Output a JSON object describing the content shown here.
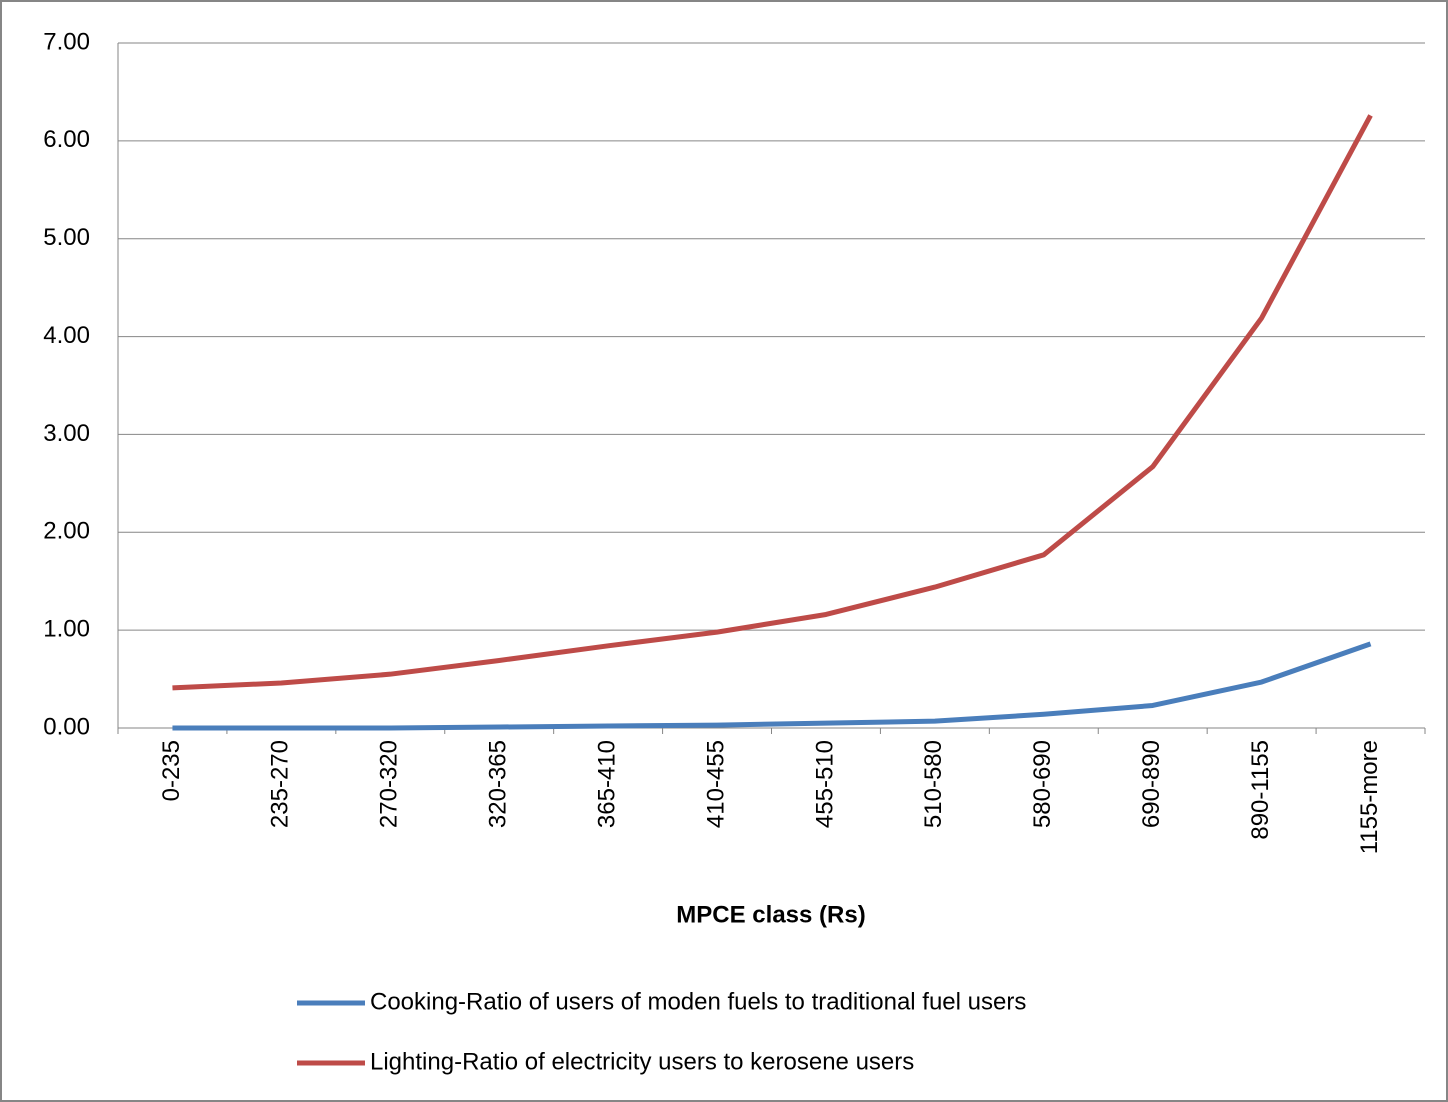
{
  "chart_data": {
    "type": "line",
    "xlabel": "MPCE class (Rs)",
    "categories": [
      "0-235",
      "235-270",
      "270-320",
      "320-365",
      "365-410",
      "410-455",
      "455-510",
      "510-580",
      "580-690",
      "690-890",
      "890-1155",
      "1155-more"
    ],
    "series": [
      {
        "name": "Cooking-Ratio of users of moden fuels to traditional fuel users",
        "color": "#4a7ebb",
        "values": [
          0.0,
          0.0,
          0.0,
          0.01,
          0.02,
          0.03,
          0.05,
          0.07,
          0.14,
          0.23,
          0.47,
          0.86
        ]
      },
      {
        "name": "Lighting-Ratio of electricity users to kerosene users",
        "color": "#be4b48",
        "values": [
          0.41,
          0.46,
          0.55,
          0.69,
          0.84,
          0.98,
          1.16,
          1.44,
          1.77,
          2.67,
          4.19,
          6.26
        ]
      }
    ],
    "ylim": [
      0,
      7
    ],
    "yticks": [
      {
        "value": 0,
        "label": "0.00"
      },
      {
        "value": 1,
        "label": "1.00"
      },
      {
        "value": 2,
        "label": "2.00"
      },
      {
        "value": 3,
        "label": "3.00"
      },
      {
        "value": 4,
        "label": "4.00"
      },
      {
        "value": 5,
        "label": "5.00"
      },
      {
        "value": 6,
        "label": "6.00"
      },
      {
        "value": 7,
        "label": "7.00"
      }
    ],
    "grid": true,
    "legend": "bottom"
  }
}
